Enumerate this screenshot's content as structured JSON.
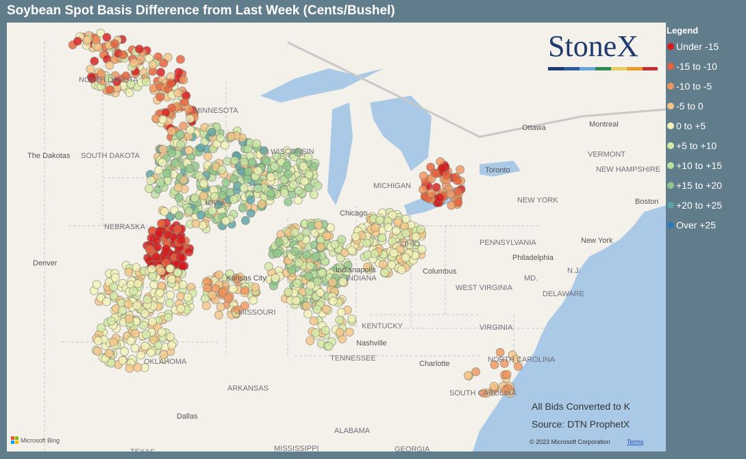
{
  "header": {
    "title": "Soybean Spot Basis Difference from Last Week (Cents/Bushel)"
  },
  "legend": {
    "title": "Legend",
    "items": [
      {
        "label": "Under -15",
        "color": "#d7191c"
      },
      {
        "label": "-15 to -10",
        "color": "#e8603c"
      },
      {
        "label": "-10 to -5",
        "color": "#f0955e"
      },
      {
        "label": "-5 to 0",
        "color": "#f5c587"
      },
      {
        "label": "0 to +5",
        "color": "#f3f3b8"
      },
      {
        "label": "+5 to +10",
        "color": "#d4eaa6"
      },
      {
        "label": "+10 to +15",
        "color": "#bde0a0"
      },
      {
        "label": "+15 to +20",
        "color": "#8fc78c"
      },
      {
        "label": "+20 to +25",
        "color": "#5aa3a6"
      },
      {
        "label": "Over +25",
        "color": "#2b7bb9"
      }
    ]
  },
  "map": {
    "labels": [
      "NORTH DAKOTA",
      "MINNESOTA",
      "The Dakotas",
      "SOUTH DAKOTA",
      "WISCONSIN",
      "MICHIGAN",
      "NEBRASKA",
      "Denver",
      "Chicago",
      "IOWA",
      "MISSOURI",
      "INDIANA",
      "OHIO",
      "Columbus",
      "PENNSYLVANIA",
      "NEW YORK",
      "New York",
      "Philadelphia",
      "WEST VIRGINIA",
      "VIRGINIA",
      "KENTUCKY",
      "Nashville",
      "TENNESSEE",
      "OKLAHOMA",
      "ARKANSAS",
      "Dallas",
      "ALABAMA",
      "MISSISSIPPI",
      "GEORGIA",
      "TEXAS",
      "NORTH CAROLINA",
      "SOUTH CAROLINA",
      "Charlotte",
      "Ottawa",
      "Montreal",
      "VERMONT",
      "NEW HAMPSHIRE",
      "Boston",
      "MD.",
      "N.J.",
      "DELAWARE",
      "Toronto",
      "Indianapolis",
      "Kansas City"
    ],
    "notes": [
      "All Bids Converted to K",
      "Source: DTN ProphetX"
    ],
    "logo": "StoneX",
    "attribution": "© 2023 Microsoft Corporation",
    "terms": "Terms",
    "provider": "Microsoft Bing"
  }
}
